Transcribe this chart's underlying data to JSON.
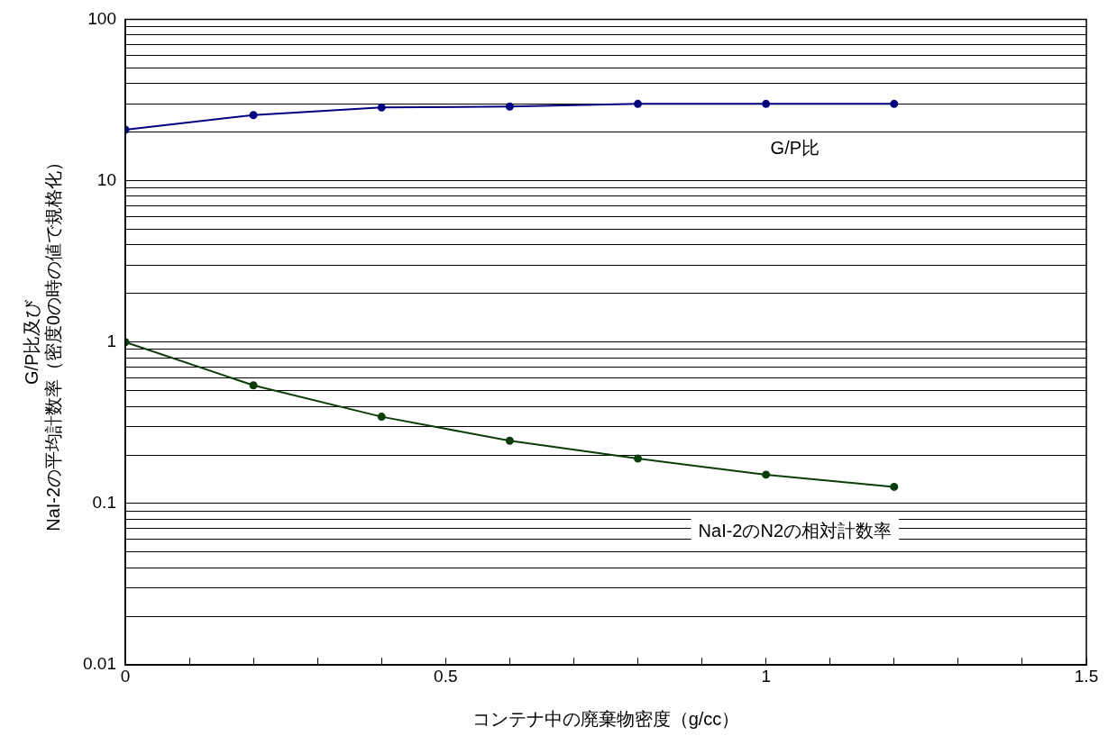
{
  "chart_data": {
    "type": "line",
    "xlabel": "コンテナ中の廃棄物密度（g/cc）",
    "ylabel": "G/P比及び\nNaI-2の平均計数率（密度0の時の値で規格化）",
    "x": [
      0,
      0.2,
      0.4,
      0.6,
      0.8,
      1.0,
      1.2
    ],
    "series": [
      {
        "name": "G/P比",
        "color": "#000080",
        "values": [
          20.7,
          25.5,
          28.4,
          28.8,
          29.9,
          29.9,
          29.9
        ]
      },
      {
        "name": "NaI-2のN2の相対計数率",
        "color": "#0b3d0b",
        "values": [
          1.0,
          0.54,
          0.345,
          0.245,
          0.19,
          0.151,
          0.127
        ]
      }
    ],
    "log": "y",
    "xlim": [
      0,
      1.5
    ],
    "xticks": [
      0,
      {
        "value": 0.1,
        "label": null
      },
      {
        "value": 0.2,
        "label": null
      },
      {
        "value": 0.3,
        "label": null
      },
      {
        "value": 0.4,
        "label": null
      },
      0.5,
      {
        "value": 0.6,
        "label": null
      },
      {
        "value": 0.7,
        "label": null
      },
      {
        "value": 0.8,
        "label": null
      },
      {
        "value": 0.9,
        "label": null
      },
      1,
      {
        "value": 1.1,
        "label": null
      },
      {
        "value": 1.2,
        "label": null
      },
      {
        "value": 1.3,
        "label": null
      },
      {
        "value": 1.4,
        "label": null
      },
      1.5
    ],
    "ylim": [
      0.01,
      100
    ],
    "yticks": [
      0.01,
      {
        "value": 0.02,
        "label": null
      },
      {
        "value": 0.03,
        "label": null
      },
      {
        "value": 0.04,
        "label": null
      },
      {
        "value": 0.05,
        "label": null
      },
      {
        "value": 0.06,
        "label": null
      },
      {
        "value": 0.07,
        "label": null
      },
      {
        "value": 0.08,
        "label": null
      },
      {
        "value": 0.09,
        "label": null
      },
      0.1,
      {
        "value": 0.2,
        "label": null
      },
      {
        "value": 0.3,
        "label": null
      },
      {
        "value": 0.4,
        "label": null
      },
      {
        "value": 0.5,
        "label": null
      },
      {
        "value": 0.6,
        "label": null
      },
      {
        "value": 0.7,
        "label": null
      },
      {
        "value": 0.8,
        "label": null
      },
      {
        "value": 0.9,
        "label": null
      },
      1,
      {
        "value": 2,
        "label": null
      },
      {
        "value": 3,
        "label": null
      },
      {
        "value": 4,
        "label": null
      },
      {
        "value": 5,
        "label": null
      },
      {
        "value": 6,
        "label": null
      },
      {
        "value": 7,
        "label": null
      },
      {
        "value": 8,
        "label": null
      },
      {
        "value": 9,
        "label": null
      },
      10,
      {
        "value": 20,
        "label": null
      },
      {
        "value": 30,
        "label": null
      },
      {
        "value": 40,
        "label": null
      },
      {
        "value": 50,
        "label": null
      },
      {
        "value": 60,
        "label": null
      },
      {
        "value": 70,
        "label": null
      },
      {
        "value": 80,
        "label": null
      },
      {
        "value": 90,
        "label": null
      },
      100
    ],
    "grid": "y",
    "legend": false,
    "marker": "circle",
    "line_style": "solid"
  }
}
